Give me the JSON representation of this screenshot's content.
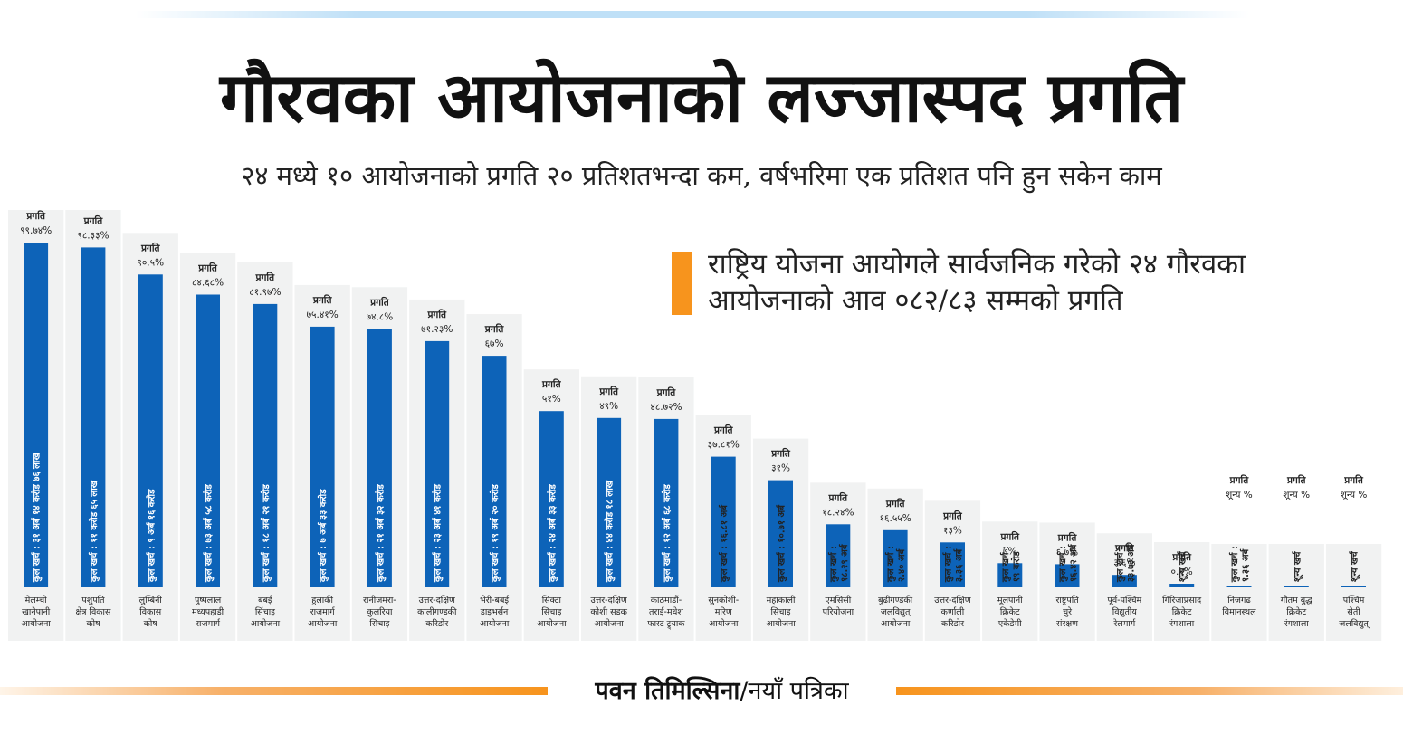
{
  "header": {
    "title": "गौरवका आयोजनाको लज्जास्पद प्रगति",
    "subtitle": "२४ मध्ये १० आयोजनाको प्रगति २० प्रतिशतभन्दा कम, वर्षभरिमा एक प्रतिशत पनि हुन सकेन काम"
  },
  "note": {
    "line1": "राष्ट्रिय योजना आयोगले सार्वजनिक गरेको २४ गौरवका",
    "line2": "आयोजनाको आव ०८२/८३ सम्मको प्रगति"
  },
  "credit": {
    "author": "पवन तिमिल्सिना",
    "separator": "/",
    "source": "नयाँ पत्रिका"
  },
  "colors": {
    "bar": "#0d63b8",
    "marker": "#f7941d",
    "panel": "#f1f2f2",
    "rule_top": "#bfe0f7",
    "rule_bottom": "#f7941d"
  },
  "chart_data": {
    "type": "bar",
    "orientation": "vertical",
    "unit": "%",
    "ylim": [
      0,
      100
    ],
    "grid": false,
    "progress_label": "प्रगति",
    "categories": [
      [
        "मेलम्ची",
        "खानेपानी",
        "आयोजना"
      ],
      [
        "पशुपति",
        "क्षेत्र विकास",
        "कोष"
      ],
      [
        "लुम्बिनी",
        "विकास",
        "कोष"
      ],
      [
        "पुष्पलाल",
        "मध्यपहाडी",
        "राजमार्ग"
      ],
      [
        "बबई",
        "सिंचाइ",
        "आयोजना"
      ],
      [
        "हुलाकी",
        "राजमार्ग",
        "आयोजना"
      ],
      [
        "रानीजमरा-",
        "कुलरिया",
        "सिंचाइ"
      ],
      [
        "उत्तर-दक्षिण",
        "कालीगण्डकी",
        "करिडोर"
      ],
      [
        "भेरी-बबई",
        "डाइभर्सन",
        "आयोजना"
      ],
      [
        "सिक्टा",
        "सिंचाइ",
        "आयोजना"
      ],
      [
        "उत्तर-दक्षिण",
        "कोशी सडक",
        "आयोजना"
      ],
      [
        "काठमाडौं-",
        "तराई-मधेश",
        "फास्ट ट्र्याक"
      ],
      [
        "सुनकोशी-",
        "मरिण",
        "आयोजना"
      ],
      [
        "महाकाली",
        "सिंचाइ",
        "आयोजना"
      ],
      [
        "एमसिसी",
        "परियोजना"
      ],
      [
        "बुढीगण्डकी",
        "जलविद्युत्",
        "आयोजना"
      ],
      [
        "उत्तर-दक्षिण",
        "कर्णाली",
        "करिडोर"
      ],
      [
        "मूलपानी",
        "क्रिकेट",
        "एकेडेमी"
      ],
      [
        "राष्ट्रपति",
        "चुरे",
        "संरक्षण"
      ],
      [
        "पूर्व-पश्चिम",
        "विद्युतीय",
        "रेलमार्ग"
      ],
      [
        "गिरिजाप्रसाद",
        "क्रिकेट",
        "रंगशाला"
      ],
      [
        "निजगढ",
        "विमानस्थल"
      ],
      [
        "गौतम बुद्ध",
        "क्रिकेट",
        "रंगशाला"
      ],
      [
        "पश्चिम",
        "सेती",
        "जलविद्युत्"
      ]
    ],
    "values": [
      99.74,
      98.33,
      90.5,
      84.68,
      81.97,
      75.41,
      74.8,
      71.23,
      67,
      51,
      49,
      48.72,
      37.81,
      31,
      18.24,
      16.55,
      13,
      7,
      6.7,
      3.6,
      0.1,
      0,
      0,
      0
    ],
    "value_labels": [
      "९९.७४%",
      "९८.३३%",
      "९०.५%",
      "८४.६८%",
      "८१.९७%",
      "७५.४१%",
      "७४.८%",
      "७१.२३%",
      "६७%",
      "५१%",
      "४९%",
      "४८.७२%",
      "३७.८१%",
      "३१%",
      "१८.२४%",
      "१६.५५%",
      "१३%",
      "७%",
      "६.७%",
      "३.६%",
      "०.१%",
      "शून्य %",
      "शून्य %",
      "शून्य %"
    ],
    "cost_labels": [
      [
        "कुल खर्च : ३१ अर्ब १४ करोड ७६ लाख"
      ],
      [
        "कुल खर्च : ११ करोड ६५ लाख"
      ],
      [
        "कुल खर्च : ९ अर्ब १६ करोड"
      ],
      [
        "कुल खर्च : ७३ अर्ब ५८ करोड"
      ],
      [
        "कुल खर्च : १८ अर्ब २१ करोड"
      ],
      [
        "कुल खर्च : ७ अर्ब ३३ करोड"
      ],
      [
        "कुल खर्च : २१ अर्ब ३२ करोड"
      ],
      [
        "कुल खर्च : २३ अर्ब ४१ करोड"
      ],
      [
        "कुल खर्च : १९ अर्ब २० करोड"
      ],
      [
        "कुल खर्च : २४ अर्ब ३३ करोड"
      ],
      [
        "कुल खर्च : ४४ करोड १८ लाख"
      ],
      [
        "कुल खर्च : १२ अर्ब ६८ करोड"
      ],
      [
        "कुल खर्च : १६.८१ अर्ब"
      ],
      [
        "कुल खर्च : १०.७१ अर्ब"
      ],
      [
        "कुल खर्च :",
        "१८.२९ अर्ब"
      ],
      [
        "कुल खर्च :",
        "२.४० अर्ब"
      ],
      [
        "कुल खर्च :",
        "३.३६ अर्ब"
      ],
      [
        "कुल खर्च :",
        "१९ करोड"
      ],
      [
        "कुल खर्च :",
        "१६.४२ अर्ब"
      ],
      [
        "कुल खर्च :",
        "३३.७३ अर्ब"
      ],
      [
        "शून्य खर्च"
      ],
      [
        "कुल खर्च :",
        "१.३६ अर्ब"
      ],
      [
        "शून्य खर्च"
      ],
      [
        "शून्य खर्च"
      ]
    ]
  }
}
